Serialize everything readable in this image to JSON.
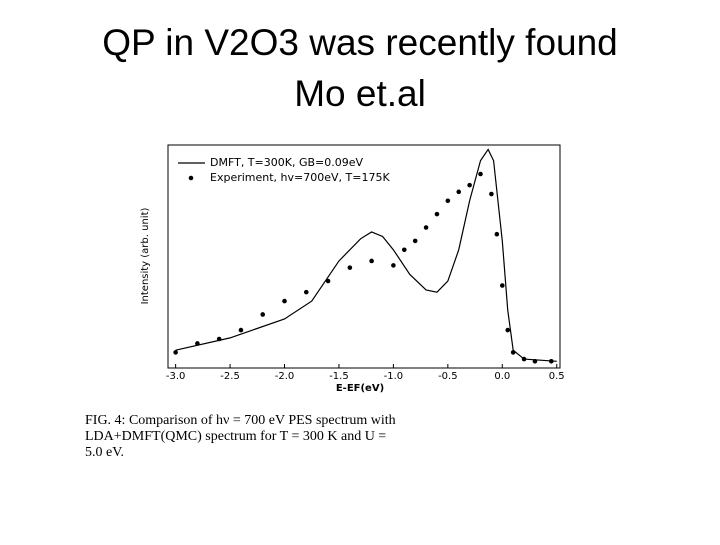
{
  "slide": {
    "title_lines": [
      "QP in V2O3 was recently found",
      "Mo et.al"
    ]
  },
  "chart_data": {
    "type": "line",
    "xlabel": "E-EF(eV)",
    "ylabel": "Intensity (arb. unit)",
    "xlim": [
      -3.07,
      0.53
    ],
    "ylim": [
      0,
      1
    ],
    "xticks": [
      {
        "value": -3,
        "label": "-3.0"
      },
      -2.5,
      {
        "value": -2,
        "label": "-2.0"
      },
      -1.5,
      {
        "value": -1,
        "label": "-1.0"
      },
      -0.5,
      {
        "value": 0,
        "label": "0.0"
      },
      0.5
    ],
    "series": [
      {
        "name": "DMFT, T=300K, GB=0.09eV",
        "style": "line",
        "color": "#000000",
        "x": [
          -3.0,
          -2.5,
          -2.0,
          -1.75,
          -1.5,
          -1.3,
          -1.2,
          -1.1,
          -1.0,
          -0.85,
          -0.7,
          -0.6,
          -0.5,
          -0.4,
          -0.3,
          -0.2,
          -0.13,
          -0.08,
          0.0,
          0.05,
          0.1,
          0.2,
          0.5
        ],
        "values": [
          0.08,
          0.135,
          0.22,
          0.3,
          0.48,
          0.58,
          0.61,
          0.59,
          0.53,
          0.42,
          0.35,
          0.34,
          0.39,
          0.53,
          0.75,
          0.93,
          0.98,
          0.93,
          0.57,
          0.26,
          0.08,
          0.04,
          0.03
        ]
      },
      {
        "name": "Experiment, hv=700eV, T=175K",
        "style": "points",
        "color": "#000000",
        "x": [
          -3.0,
          -2.8,
          -2.6,
          -2.4,
          -2.2,
          -2.0,
          -1.8,
          -1.6,
          -1.4,
          -1.2,
          -1.0,
          -0.9,
          -0.8,
          -0.7,
          -0.6,
          -0.5,
          -0.4,
          -0.3,
          -0.2,
          -0.1,
          -0.05,
          0.0,
          0.05,
          0.1,
          0.2,
          0.3,
          0.45
        ],
        "values": [
          0.07,
          0.11,
          0.13,
          0.17,
          0.24,
          0.3,
          0.34,
          0.39,
          0.45,
          0.48,
          0.46,
          0.53,
          0.57,
          0.63,
          0.69,
          0.75,
          0.79,
          0.82,
          0.87,
          0.78,
          0.6,
          0.37,
          0.17,
          0.07,
          0.04,
          0.03,
          0.03
        ]
      }
    ]
  },
  "caption": {
    "lines": [
      "FIG. 4:  Comparison of hν = 700 eV PES spectrum with",
      "LDA+DMFT(QMC) spectrum for T = 300 K and U =",
      "5.0 eV."
    ]
  }
}
